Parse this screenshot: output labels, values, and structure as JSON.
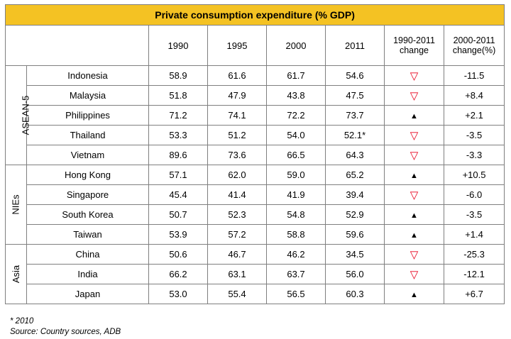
{
  "title": "Private consumption expenditure (% GDP)",
  "headers": [
    "1990",
    "1995",
    "2000",
    "2011",
    "1990-2011 change",
    "2000-2011 change(%)"
  ],
  "groups": [
    {
      "name": "ASEAN-5",
      "rows": [
        {
          "country": "Indonesia",
          "v1990": "58.9",
          "v1995": "61.6",
          "v2000": "61.7",
          "v2011": "54.6",
          "trend": "down",
          "change": "-11.5"
        },
        {
          "country": "Malaysia",
          "v1990": "51.8",
          "v1995": "47.9",
          "v2000": "43.8",
          "v2011": "47.5",
          "trend": "down",
          "change": "+8.4"
        },
        {
          "country": "Philippines",
          "v1990": "71.2",
          "v1995": "74.1",
          "v2000": "72.2",
          "v2011": "73.7",
          "trend": "up",
          "change": "+2.1"
        },
        {
          "country": "Thailand",
          "v1990": "53.3",
          "v1995": "51.2",
          "v2000": "54.0",
          "v2011": "52.1*",
          "trend": "down",
          "change": "-3.5"
        },
        {
          "country": "Vietnam",
          "v1990": "89.6",
          "v1995": "73.6",
          "v2000": "66.5",
          "v2011": "64.3",
          "trend": "down",
          "change": "-3.3"
        }
      ]
    },
    {
      "name": "NIEs",
      "rows": [
        {
          "country": "Hong Kong",
          "v1990": "57.1",
          "v1995": "62.0",
          "v2000": "59.0",
          "v2011": "65.2",
          "trend": "up",
          "change": "+10.5"
        },
        {
          "country": "Singapore",
          "v1990": "45.4",
          "v1995": "41.4",
          "v2000": "41.9",
          "v2011": "39.4",
          "trend": "down",
          "change": "-6.0"
        },
        {
          "country": "South Korea",
          "v1990": "50.7",
          "v1995": "52.3",
          "v2000": "54.8",
          "v2011": "52.9",
          "trend": "up",
          "change": "-3.5"
        },
        {
          "country": "Taiwan",
          "v1990": "53.9",
          "v1995": "57.2",
          "v2000": "58.8",
          "v2011": "59.6",
          "trend": "up",
          "change": "+1.4"
        }
      ]
    },
    {
      "name": "Asia",
      "rows": [
        {
          "country": "China",
          "v1990": "50.6",
          "v1995": "46.7",
          "v2000": "46.2",
          "v2011": "34.5",
          "trend": "down",
          "change": "-25.3"
        },
        {
          "country": "India",
          "v1990": "66.2",
          "v1995": "63.1",
          "v2000": "63.7",
          "v2011": "56.0",
          "trend": "down",
          "change": "-12.1"
        },
        {
          "country": "Japan",
          "v1990": "53.0",
          "v1995": "55.4",
          "v2000": "56.5",
          "v2011": "60.3",
          "trend": "up",
          "change": "+6.7"
        }
      ]
    }
  ],
  "trend_icons": {
    "down": "▽",
    "up": "▲"
  },
  "colors": {
    "title_bg": "#f4c223",
    "down": "#e8001c",
    "up": "#000000"
  },
  "footnote": "* 2010",
  "source": "Source: Country sources, ADB"
}
